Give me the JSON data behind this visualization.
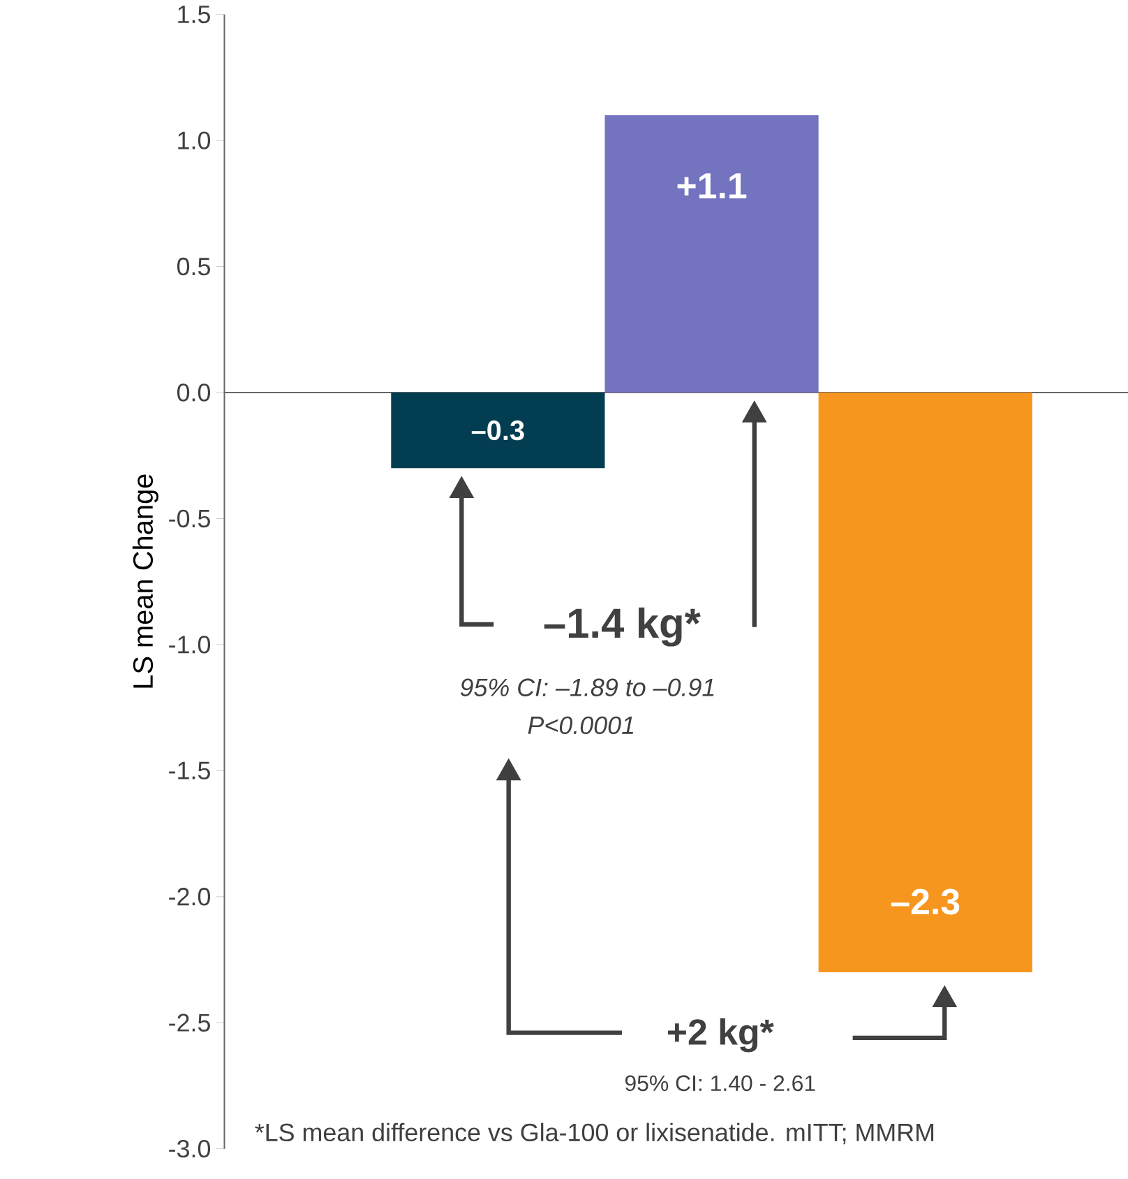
{
  "chart_data": {
    "type": "bar",
    "ylabel": "LS mean Change",
    "categories": [
      null,
      null,
      null
    ],
    "values": [
      -0.3,
      1.1,
      -2.3
    ],
    "colors": [
      "#023d51",
      "#7473bf",
      "#f7961f"
    ],
    "value_labels": [
      "–0.3",
      "+1.1",
      "–2.3"
    ],
    "ylim": [
      -3.0,
      1.5
    ],
    "yticks": [
      {
        "value": -3.0,
        "label": "-3.0"
      },
      {
        "value": -2.5,
        "label": "-2.5"
      },
      {
        "value": -2.0,
        "label": "-2.0"
      },
      {
        "value": -1.5,
        "label": "-1.5"
      },
      {
        "value": -1.0,
        "label": "-1.0"
      },
      {
        "value": -0.5,
        "label": "-0.5"
      },
      {
        "value": 0.0,
        "label": "0.0"
      },
      {
        "value": 0.5,
        "label": "0.5"
      },
      {
        "value": 1.0,
        "label": "1.0"
      },
      {
        "value": 1.5,
        "label": "1.5"
      }
    ],
    "annotations": [
      "–1.4 kg*",
      "95% CI: –1.89 to –0.91",
      "P<0.0001",
      "+2 kg*",
      "95% CI: 1.40 - 2.61",
      "*LS mean difference vs Gla-100 or lixisenatide. mITT; MMRM"
    ]
  }
}
